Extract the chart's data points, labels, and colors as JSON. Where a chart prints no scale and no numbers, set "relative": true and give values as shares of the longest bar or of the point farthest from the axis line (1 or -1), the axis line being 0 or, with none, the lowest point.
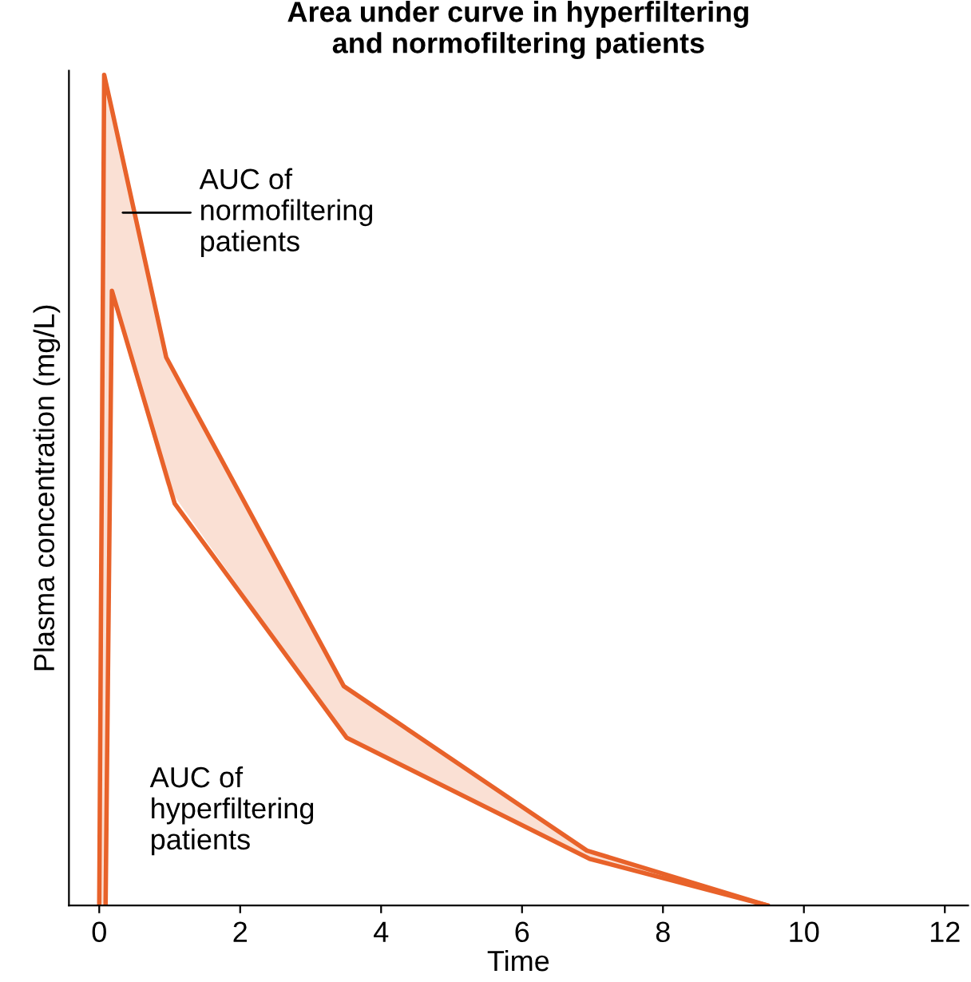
{
  "chart_data": {
    "type": "line",
    "title": "Area under curve in hyperfiltering\nand normofiltering patients",
    "xlabel": "Time",
    "ylabel": "Plasma concentration (mg/L)",
    "relative": true,
    "xlim": [
      -0.43,
      12.33
    ],
    "xticks": [
      0,
      2,
      4,
      6,
      8,
      10,
      12
    ],
    "grid": false,
    "legend": false,
    "marker": "none",
    "line_style": "solid",
    "series": [
      {
        "color": "#e8622a",
        "x": [
          0,
          0.07,
          0.18,
          0.95,
          3.47,
          6.92,
          9.48
        ],
        "values": [
          0,
          1,
          0.958,
          0.66,
          0.264,
          0.066,
          0
        ],
        "lower": [
          0,
          0,
          0.74,
          0.507,
          0.205,
          0.057,
          0
        ],
        "upper": [
          0,
          1,
          0.958,
          0.66,
          0.264,
          0.066,
          0
        ]
      },
      {
        "color": "#e8622a",
        "x": [
          0.09,
          0.18,
          1.07,
          3.51,
          6.96,
          9.48
        ],
        "values": [
          0,
          0.74,
          0.484,
          0.202,
          0.056,
          0
        ]
      }
    ],
    "annotations": [
      "AUC of\nnormofiltering\npatients",
      "AUC of\nhyperfiltering\npatients"
    ]
  }
}
